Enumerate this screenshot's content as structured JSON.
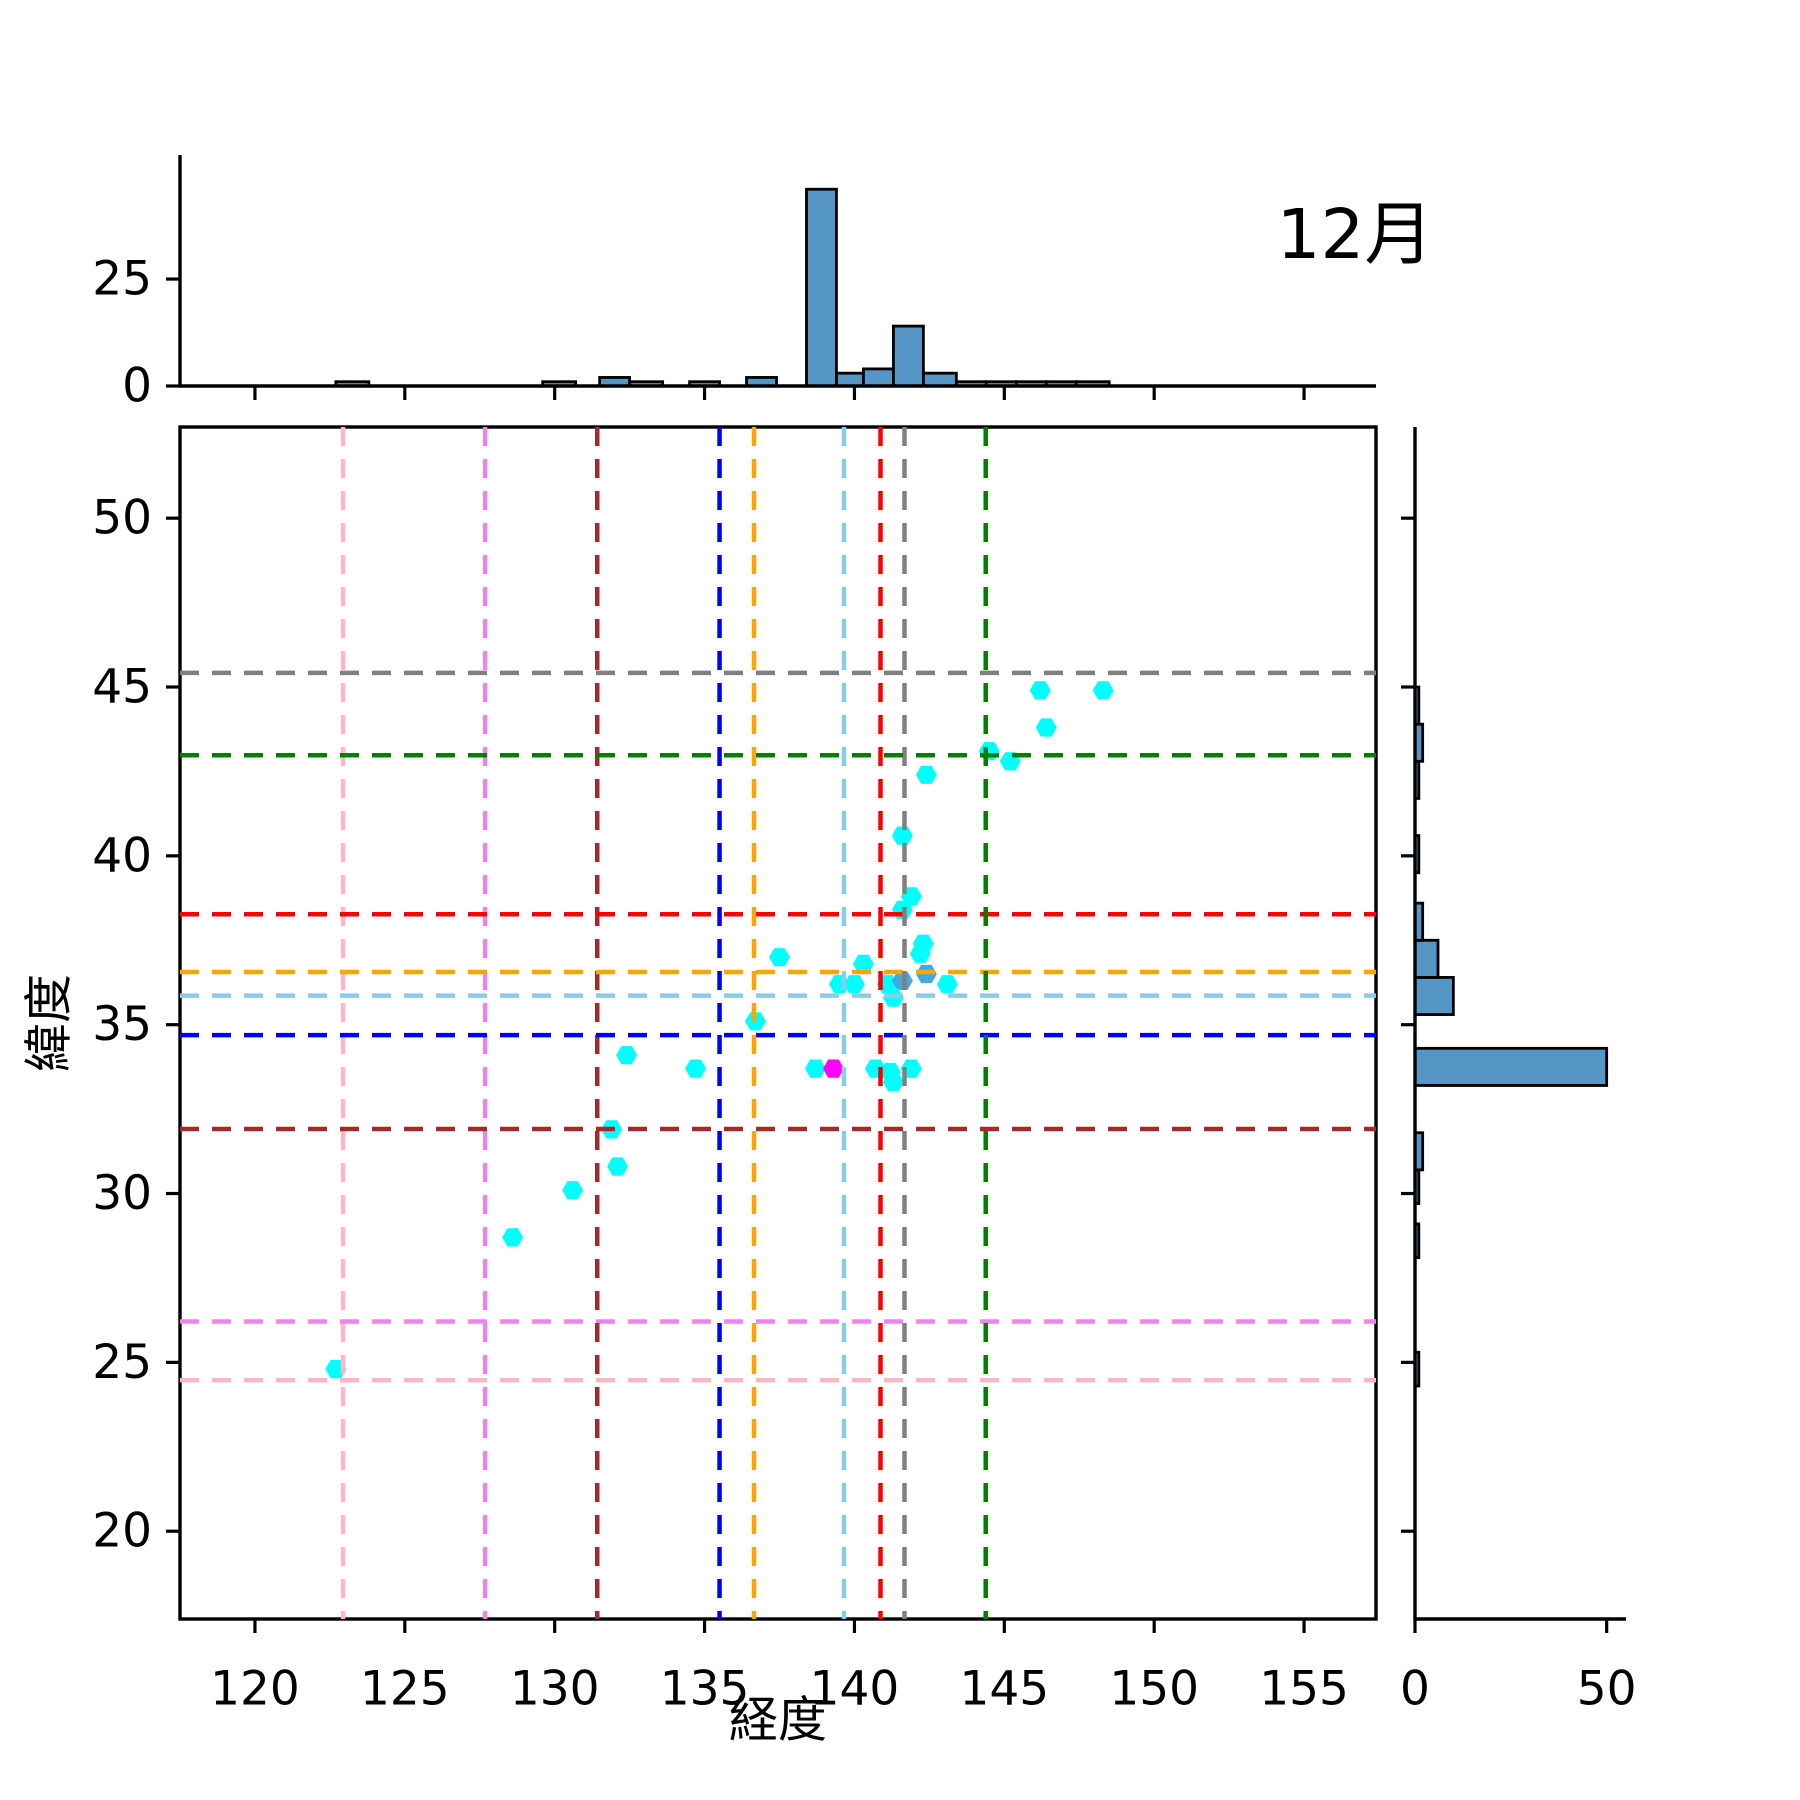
{
  "title": "12月",
  "axes": {
    "xlabel": "経度",
    "ylabel": "緯度",
    "x_ticks": [
      120,
      125,
      130,
      135,
      140,
      145,
      150,
      155
    ],
    "y_ticks": [
      20,
      25,
      30,
      35,
      40,
      45,
      50
    ],
    "top_hist_y_ticks": [
      0,
      25
    ],
    "right_hist_x_ticks": [
      0,
      50
    ],
    "xlim": [
      117.5,
      157.4
    ],
    "ylim": [
      17.4,
      52.7
    ],
    "top_hist_count_max": 54,
    "right_hist_count_max": 54,
    "grid": false,
    "legend": "none"
  },
  "colors": {
    "point_cyan": "#00FFFF",
    "point_overlap": "#3FA9E0",
    "point_magenta": "#FF00FF",
    "hist_fill": "#5596C7",
    "hist_edge": "#000000",
    "spine": "#000000",
    "text": "#000000"
  },
  "chart_data": [
    {
      "type": "scatter",
      "name": "observation-points",
      "marker": "hexagon",
      "xlabel": "経度",
      "ylabel": "緯度",
      "points": [
        {
          "lon": 122.7,
          "lat": 24.8,
          "c": "cyan"
        },
        {
          "lon": 128.6,
          "lat": 28.7,
          "c": "cyan"
        },
        {
          "lon": 130.6,
          "lat": 30.1,
          "c": "cyan"
        },
        {
          "lon": 132.1,
          "lat": 30.8,
          "c": "cyan"
        },
        {
          "lon": 131.9,
          "lat": 31.9,
          "c": "cyan"
        },
        {
          "lon": 132.4,
          "lat": 34.1,
          "c": "cyan"
        },
        {
          "lon": 134.7,
          "lat": 33.7,
          "c": "cyan"
        },
        {
          "lon": 136.7,
          "lat": 35.1,
          "c": "cyan"
        },
        {
          "lon": 137.5,
          "lat": 37.0,
          "c": "cyan"
        },
        {
          "lon": 138.7,
          "lat": 33.7,
          "c": "cyan"
        },
        {
          "lon": 139.3,
          "lat": 33.7,
          "c": "magenta"
        },
        {
          "lon": 140.7,
          "lat": 33.7,
          "c": "cyan"
        },
        {
          "lon": 141.2,
          "lat": 33.6,
          "c": "cyan"
        },
        {
          "lon": 141.3,
          "lat": 33.3,
          "c": "cyan"
        },
        {
          "lon": 141.9,
          "lat": 33.7,
          "c": "cyan"
        },
        {
          "lon": 139.5,
          "lat": 36.2,
          "c": "cyan"
        },
        {
          "lon": 140.0,
          "lat": 36.2,
          "c": "cyan"
        },
        {
          "lon": 140.3,
          "lat": 36.8,
          "c": "cyan"
        },
        {
          "lon": 141.1,
          "lat": 36.2,
          "c": "cyan"
        },
        {
          "lon": 141.6,
          "lat": 36.3,
          "c": "overlap"
        },
        {
          "lon": 141.3,
          "lat": 35.8,
          "c": "cyan"
        },
        {
          "lon": 142.4,
          "lat": 36.5,
          "c": "overlap"
        },
        {
          "lon": 142.2,
          "lat": 37.1,
          "c": "cyan"
        },
        {
          "lon": 142.3,
          "lat": 37.4,
          "c": "cyan"
        },
        {
          "lon": 143.1,
          "lat": 36.2,
          "c": "cyan"
        },
        {
          "lon": 141.6,
          "lat": 38.4,
          "c": "cyan"
        },
        {
          "lon": 141.9,
          "lat": 38.8,
          "c": "cyan"
        },
        {
          "lon": 141.6,
          "lat": 40.6,
          "c": "cyan"
        },
        {
          "lon": 142.4,
          "lat": 42.4,
          "c": "cyan"
        },
        {
          "lon": 144.5,
          "lat": 43.1,
          "c": "cyan"
        },
        {
          "lon": 145.2,
          "lat": 42.8,
          "c": "cyan"
        },
        {
          "lon": 146.4,
          "lat": 43.8,
          "c": "cyan"
        },
        {
          "lon": 146.2,
          "lat": 44.9,
          "c": "cyan"
        },
        {
          "lon": 148.3,
          "lat": 44.9,
          "c": "cyan"
        }
      ]
    },
    {
      "type": "bar",
      "name": "longitude-histogram",
      "orientation": "vertical",
      "position": "top-margin",
      "bars": [
        {
          "lo": 122.7,
          "hi": 123.8,
          "count": 1
        },
        {
          "lo": 129.6,
          "hi": 130.7,
          "count": 1
        },
        {
          "lo": 131.5,
          "hi": 132.5,
          "count": 2
        },
        {
          "lo": 132.5,
          "hi": 133.6,
          "count": 1
        },
        {
          "lo": 134.5,
          "hi": 135.5,
          "count": 1
        },
        {
          "lo": 136.4,
          "hi": 137.4,
          "count": 2
        },
        {
          "lo": 138.4,
          "hi": 139.4,
          "count": 46
        },
        {
          "lo": 139.4,
          "hi": 140.3,
          "count": 3
        },
        {
          "lo": 140.3,
          "hi": 141.3,
          "count": 4
        },
        {
          "lo": 141.3,
          "hi": 142.3,
          "count": 14
        },
        {
          "lo": 142.3,
          "hi": 143.4,
          "count": 3
        },
        {
          "lo": 143.4,
          "hi": 144.4,
          "count": 1
        },
        {
          "lo": 144.4,
          "hi": 145.4,
          "count": 1
        },
        {
          "lo": 145.4,
          "hi": 146.4,
          "count": 1
        },
        {
          "lo": 146.4,
          "hi": 147.4,
          "count": 1
        },
        {
          "lo": 147.4,
          "hi": 148.5,
          "count": 1
        }
      ]
    },
    {
      "type": "bar",
      "name": "latitude-histogram",
      "orientation": "horizontal",
      "position": "right-margin",
      "bars": [
        {
          "lo": 24.3,
          "hi": 25.3,
          "count": 1
        },
        {
          "lo": 28.1,
          "hi": 29.1,
          "count": 1
        },
        {
          "lo": 29.7,
          "hi": 30.7,
          "count": 1
        },
        {
          "lo": 30.7,
          "hi": 31.8,
          "count": 2
        },
        {
          "lo": 33.2,
          "hi": 34.3,
          "count": 50
        },
        {
          "lo": 35.3,
          "hi": 36.4,
          "count": 10
        },
        {
          "lo": 36.4,
          "hi": 37.5,
          "count": 6
        },
        {
          "lo": 37.5,
          "hi": 38.6,
          "count": 2
        },
        {
          "lo": 39.5,
          "hi": 40.6,
          "count": 1
        },
        {
          "lo": 41.7,
          "hi": 42.8,
          "count": 1
        },
        {
          "lo": 42.8,
          "hi": 43.9,
          "count": 2
        },
        {
          "lo": 43.9,
          "hi": 45.0,
          "count": 1
        }
      ]
    },
    {
      "type": "crosshairs",
      "name": "city-crosshair-lines",
      "style": "dashed",
      "lines": [
        {
          "name": "pink",
          "color": "#FFB6C1",
          "lon": 122.94,
          "lat": 24.47
        },
        {
          "name": "violet",
          "color": "#EE82EE",
          "lon": 127.68,
          "lat": 26.21
        },
        {
          "name": "brown",
          "color": "#A52A2A",
          "lon": 131.42,
          "lat": 31.91
        },
        {
          "name": "blue",
          "color": "#0000FF",
          "lon": 135.5,
          "lat": 34.69
        },
        {
          "name": "orange",
          "color": "#FFA500",
          "lon": 136.65,
          "lat": 36.56
        },
        {
          "name": "skyblue",
          "color": "#87CEEB",
          "lon": 139.65,
          "lat": 35.86
        },
        {
          "name": "red",
          "color": "#FF0000",
          "lon": 140.87,
          "lat": 38.27
        },
        {
          "name": "gray",
          "color": "#808080",
          "lon": 141.67,
          "lat": 45.42
        },
        {
          "name": "green",
          "color": "#008000",
          "lon": 144.38,
          "lat": 42.98
        }
      ]
    }
  ]
}
